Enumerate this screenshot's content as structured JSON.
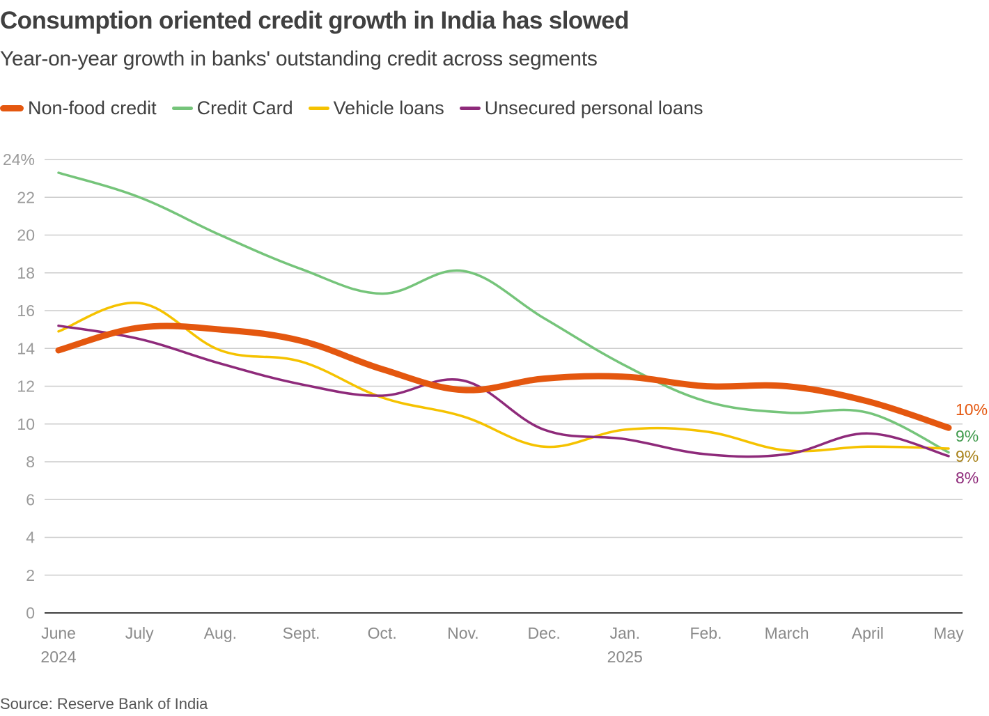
{
  "header": {
    "title": "Consumption oriented credit growth in India has slowed",
    "subtitle": "Year-on-year growth in banks' outstanding credit across segments"
  },
  "source": "Source: Reserve Bank of India",
  "chart_data": {
    "type": "line",
    "title": "Consumption oriented credit growth in India has slowed",
    "subtitle": "Year-on-year growth in banks' outstanding credit across segments",
    "xlabel": "",
    "ylabel": "",
    "x": [
      "June",
      "July",
      "Aug.",
      "Sept.",
      "Oct.",
      "Nov.",
      "Dec.",
      "Jan.",
      "Feb.",
      "March",
      "April",
      "May"
    ],
    "x_year_labels": [
      {
        "index": 0,
        "label": "2024"
      },
      {
        "index": 7,
        "label": "2025"
      }
    ],
    "ylim": [
      0,
      24
    ],
    "yticks": [
      0,
      2,
      4,
      6,
      8,
      10,
      12,
      14,
      16,
      18,
      20,
      22,
      24
    ],
    "ytick_labels": [
      "0",
      "2",
      "4",
      "6",
      "8",
      "10",
      "12",
      "14",
      "16",
      "18",
      "20",
      "22",
      "24%"
    ],
    "grid": true,
    "legend_position": "top-left",
    "series": [
      {
        "name": "Non-food credit",
        "color": "#e4570f",
        "emphasis": true,
        "end_label": "10%",
        "end_label_color": "#e4570f",
        "values": [
          13.9,
          15.1,
          15.0,
          14.4,
          12.9,
          11.8,
          12.4,
          12.5,
          12.0,
          12.0,
          11.2,
          9.8
        ]
      },
      {
        "name": "Credit Card",
        "color": "#75c47a",
        "emphasis": false,
        "end_label": "9%",
        "end_label_color": "#3f9a4c",
        "values": [
          23.3,
          22.0,
          20.0,
          18.2,
          16.9,
          18.1,
          15.6,
          13.1,
          11.2,
          10.6,
          10.6,
          8.5
        ]
      },
      {
        "name": "Vehicle loans",
        "color": "#f5c200",
        "emphasis": false,
        "end_label": "9%",
        "end_label_color": "#a8821a",
        "values": [
          14.9,
          16.4,
          13.9,
          13.3,
          11.4,
          10.4,
          8.8,
          9.7,
          9.6,
          8.6,
          8.8,
          8.7
        ]
      },
      {
        "name": "Unsecured personal loans",
        "color": "#8e2a7a",
        "emphasis": false,
        "end_label": "8%",
        "end_label_color": "#8e2a7a",
        "values": [
          15.2,
          14.5,
          13.2,
          12.1,
          11.5,
          12.3,
          9.7,
          9.2,
          8.4,
          8.4,
          9.5,
          8.3
        ]
      }
    ]
  }
}
